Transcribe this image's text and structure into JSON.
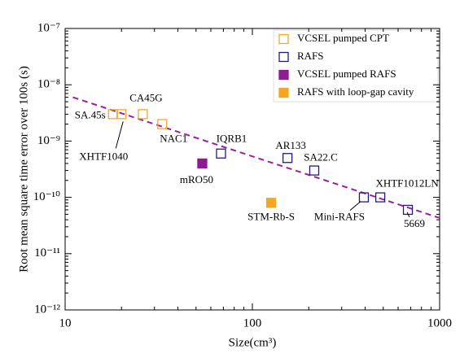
{
  "chart_data": {
    "type": "scatter",
    "xlabel": "Size(cm³)",
    "ylabel": "Root mean square time error over 100s (s)",
    "xscale": "log",
    "yscale": "log",
    "xlim": [
      10,
      1000
    ],
    "ylim": [
      1e-12,
      1e-07
    ],
    "xticks": [
      10,
      100,
      1000
    ],
    "yticks": [
      {
        "value": 1e-12,
        "label": "10⁻¹²"
      },
      {
        "value": 1e-11,
        "label": "10⁻¹¹"
      },
      {
        "value": 1e-10,
        "label": "10⁻¹⁰"
      },
      {
        "value": 1e-09,
        "label": "10⁻⁹"
      },
      {
        "value": 1e-08,
        "label": "10⁻⁸"
      },
      {
        "value": 1e-07,
        "label": "10⁻⁷"
      }
    ],
    "legend": "upper right",
    "series": [
      {
        "name": "VCSEL pumped CPT",
        "color": "#f5a623",
        "filled": false,
        "x": [
          18,
          20,
          26,
          33
        ],
        "values": [
          3e-09,
          3e-09,
          3e-09,
          2e-09
        ],
        "labels": [
          "SA.45s",
          "XHTF1040",
          "CA45G",
          "NAC1"
        ]
      },
      {
        "name": "RAFS",
        "color": "#1f1a8a",
        "filled": false,
        "x": [
          68,
          154,
          214,
          394,
          482,
          677
        ],
        "values": [
          6e-10,
          5e-10,
          3e-10,
          1e-10,
          1e-10,
          6e-11
        ],
        "labels": [
          "IQRB1",
          "AR133",
          "SA22.C",
          "Mini-RAFS",
          "XHTF1012LN",
          "5669"
        ]
      },
      {
        "name": "VCSEL pumped RAFS",
        "color": "#8e1c8e",
        "filled": true,
        "x": [
          54
        ],
        "values": [
          4e-10
        ],
        "labels": [
          "mRO50"
        ]
      },
      {
        "name": "RAFS with loop-gap cavity",
        "color": "#f5a623",
        "filled": true,
        "x": [
          126
        ],
        "values": [
          8e-11
        ],
        "labels": [
          "STM-Rb-S"
        ]
      }
    ],
    "fit": {
      "color": "#9b1fa0",
      "x": [
        11,
        1000
      ],
      "values": [
        6e-09,
        4.3e-11
      ]
    }
  }
}
